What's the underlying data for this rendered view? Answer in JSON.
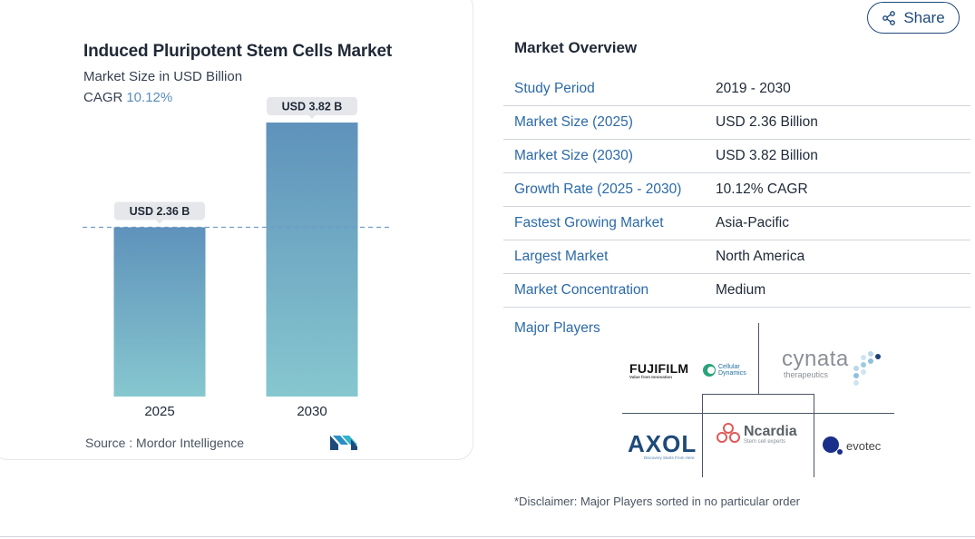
{
  "chart_data": {
    "type": "bar",
    "title": "Induced Pluripotent Stem Cells Market",
    "subtitle": "Market Size in USD Billion",
    "cagr_label": "CAGR",
    "cagr_value": "10.12%",
    "categories": [
      "2025",
      "2030"
    ],
    "values": [
      2.36,
      3.82
    ],
    "data_labels": [
      "USD 2.36 B",
      "USD 3.82 B"
    ],
    "ylim": [
      0,
      4.2
    ],
    "reference_line": 2.36,
    "colors": {
      "bar_top": "#5f92bb",
      "bar_bottom": "#86c7cf",
      "label_bg": "#e5e7eb",
      "ref_line": "#6b9bc8"
    },
    "source": "Source :  Mordor Intelligence"
  },
  "share": {
    "label": "Share",
    "icon": "share-icon"
  },
  "overview": {
    "title": "Market Overview",
    "rows": [
      {
        "key": "Study Period",
        "value": "2019 - 2030"
      },
      {
        "key": "Market Size (2025)",
        "value": "USD 2.36 Billion"
      },
      {
        "key": "Market Size (2030)",
        "value": "USD 3.82 Billion"
      },
      {
        "key": "Growth Rate (2025 - 2030)",
        "value": "10.12% CAGR"
      },
      {
        "key": "Fastest Growing Market",
        "value": "Asia-Pacific"
      },
      {
        "key": "Largest Market",
        "value": "North America"
      },
      {
        "key": "Market Concentration",
        "value": "Medium"
      }
    ],
    "major_players_label": "Major Players",
    "players": [
      "FUJIFILM Cellular Dynamics",
      "Cynata Therapeutics",
      "Axol",
      "Ncardia",
      "Evotec"
    ],
    "logo_text": {
      "fujifilm": "FUJIFILM",
      "fujifilm_tag": "Value from Innovation",
      "cdi": "Cellular Dynamics",
      "cynata": "cynata",
      "cynata_tag": "therapeutics",
      "axol": "AXOL",
      "axol_tag": "Discovery Starts From Here",
      "ncardia": "Ncardia",
      "ncardia_tag": "Stem cell experts",
      "evotec": "evotec"
    },
    "disclaimer": "*Disclaimer: Major Players sorted in no particular order"
  }
}
